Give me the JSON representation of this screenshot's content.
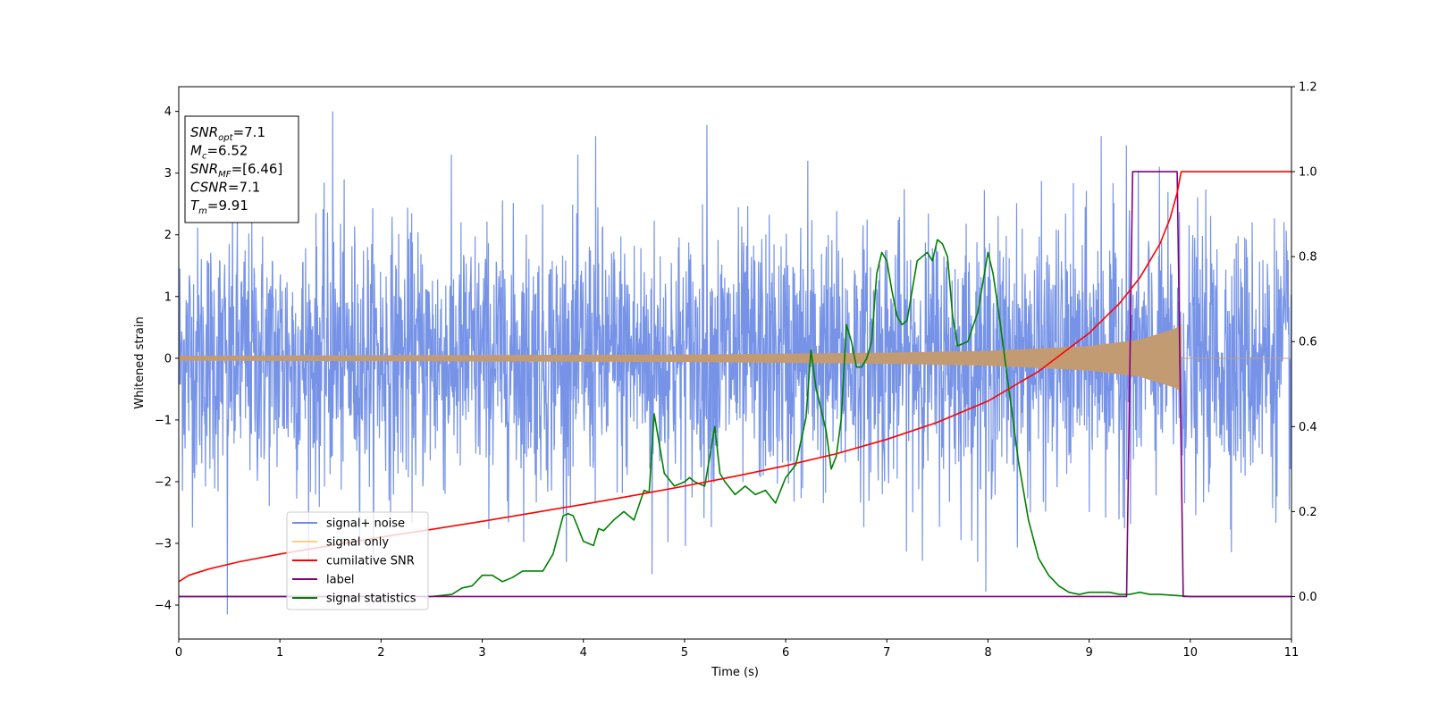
{
  "chart_data": {
    "type": "line",
    "xlabel": "Time (s)",
    "ylabel": "Whitened strain",
    "xlim": [
      0,
      11
    ],
    "ylim_left": [
      -4.55,
      4.4
    ],
    "ylim_right": [
      -0.1,
      1.2
    ],
    "x_ticks": [
      0,
      1,
      2,
      3,
      4,
      5,
      6,
      7,
      8,
      9,
      10,
      11
    ],
    "y_ticks_left": [
      -4,
      -3,
      -2,
      -1,
      0,
      1,
      2,
      3,
      4
    ],
    "y_ticks_right": [
      "0.0",
      "0.2",
      "0.4",
      "0.6",
      "0.8",
      "1.0",
      "1.2"
    ],
    "y_tick_values_right": [
      0.0,
      0.2,
      0.4,
      0.6,
      0.8,
      1.0,
      1.2
    ],
    "grid": false,
    "legend_position": "lower-left",
    "annotation": {
      "lines": [
        {
          "base": "SNR",
          "sub": "opt",
          "value": "=7.1"
        },
        {
          "base": "M",
          "sub": "c",
          "value": "=6.52"
        },
        {
          "base": "SNR",
          "sub": "MF",
          "value": "=[6.46]"
        },
        {
          "base": "CSNR",
          "sub": "",
          "value": "=7.1"
        },
        {
          "base": "T",
          "sub": "m",
          "value": "=9.91"
        }
      ]
    },
    "series": [
      {
        "name": "signal+ noise",
        "axis": "left",
        "color": "#6f8de6",
        "kind": "noise",
        "x_range": [
          0,
          11
        ],
        "typical_amplitude": 1.1,
        "peak_samples": [
          {
            "x": 0.48,
            "y": -4.15
          },
          {
            "x": 1.52,
            "y": 4.0
          },
          {
            "x": 4.12,
            "y": 3.6
          },
          {
            "x": 5.22,
            "y": 3.78
          },
          {
            "x": 6.22,
            "y": 3.2
          },
          {
            "x": 7.98,
            "y": -3.78
          },
          {
            "x": 9.12,
            "y": 3.6
          },
          {
            "x": 9.37,
            "y": 3.45
          },
          {
            "x": 4.68,
            "y": -3.5
          }
        ]
      },
      {
        "name": "signal only",
        "axis": "left",
        "color": "#c39b73",
        "kind": "chirp",
        "x_range": [
          0,
          9.91
        ],
        "envelope": [
          {
            "x": 0.0,
            "y": 0.04
          },
          {
            "x": 5.0,
            "y": 0.06
          },
          {
            "x": 7.0,
            "y": 0.09
          },
          {
            "x": 8.0,
            "y": 0.12
          },
          {
            "x": 9.0,
            "y": 0.2
          },
          {
            "x": 9.5,
            "y": 0.3
          },
          {
            "x": 9.85,
            "y": 0.48
          },
          {
            "x": 9.91,
            "y": 0.55
          }
        ]
      },
      {
        "name": "cumilative SNR",
        "axis": "right",
        "color": "#ff0000",
        "x": [
          0.0,
          0.1,
          0.3,
          0.6,
          1.0,
          1.5,
          2.0,
          2.5,
          3.0,
          3.5,
          4.0,
          4.5,
          5.0,
          5.5,
          6.0,
          6.5,
          7.0,
          7.5,
          8.0,
          8.5,
          9.0,
          9.3,
          9.5,
          9.7,
          9.8,
          9.87,
          9.91,
          10.0,
          11.0
        ],
        "y": [
          0.035,
          0.05,
          0.065,
          0.082,
          0.1,
          0.12,
          0.14,
          0.158,
          0.177,
          0.197,
          0.217,
          0.238,
          0.26,
          0.283,
          0.308,
          0.336,
          0.37,
          0.41,
          0.46,
          0.53,
          0.62,
          0.69,
          0.75,
          0.83,
          0.89,
          0.95,
          1.0,
          1.0,
          1.0
        ]
      },
      {
        "name": "label",
        "axis": "right",
        "color": "#800080",
        "x": [
          0.0,
          9.37,
          9.43,
          9.87,
          9.93,
          11.0
        ],
        "y": [
          0.0,
          0.0,
          1.0,
          1.0,
          0.0,
          0.0
        ]
      },
      {
        "name": "signal statistics",
        "axis": "right",
        "color": "#008000",
        "x": [
          0.0,
          2.0,
          2.5,
          2.7,
          2.8,
          2.9,
          3.0,
          3.1,
          3.2,
          3.3,
          3.4,
          3.5,
          3.6,
          3.7,
          3.8,
          3.85,
          3.9,
          4.0,
          4.1,
          4.15,
          4.2,
          4.3,
          4.4,
          4.5,
          4.6,
          4.65,
          4.7,
          4.8,
          4.9,
          5.0,
          5.05,
          5.1,
          5.2,
          5.25,
          5.3,
          5.35,
          5.4,
          5.5,
          5.6,
          5.7,
          5.8,
          5.9,
          6.0,
          6.1,
          6.2,
          6.25,
          6.3,
          6.4,
          6.45,
          6.5,
          6.55,
          6.6,
          6.65,
          6.7,
          6.75,
          6.8,
          6.85,
          6.9,
          6.95,
          7.0,
          7.05,
          7.1,
          7.15,
          7.2,
          7.3,
          7.4,
          7.45,
          7.5,
          7.55,
          7.6,
          7.65,
          7.7,
          7.8,
          7.9,
          8.0,
          8.05,
          8.1,
          8.2,
          8.3,
          8.4,
          8.5,
          8.6,
          8.7,
          8.8,
          8.9,
          9.0,
          9.1,
          9.2,
          9.3,
          9.4,
          9.5,
          9.6,
          9.7,
          10.0,
          11.0
        ],
        "y": [
          0.0,
          0.0,
          0.0,
          0.005,
          0.02,
          0.025,
          0.05,
          0.05,
          0.035,
          0.045,
          0.06,
          0.06,
          0.06,
          0.1,
          0.19,
          0.195,
          0.19,
          0.13,
          0.12,
          0.16,
          0.155,
          0.18,
          0.2,
          0.18,
          0.25,
          0.245,
          0.43,
          0.29,
          0.26,
          0.27,
          0.28,
          0.27,
          0.26,
          0.33,
          0.4,
          0.29,
          0.27,
          0.24,
          0.26,
          0.24,
          0.25,
          0.22,
          0.28,
          0.31,
          0.42,
          0.58,
          0.49,
          0.39,
          0.3,
          0.33,
          0.42,
          0.64,
          0.6,
          0.54,
          0.54,
          0.56,
          0.6,
          0.76,
          0.81,
          0.79,
          0.72,
          0.66,
          0.64,
          0.65,
          0.79,
          0.81,
          0.79,
          0.84,
          0.83,
          0.8,
          0.66,
          0.59,
          0.6,
          0.67,
          0.81,
          0.76,
          0.68,
          0.5,
          0.32,
          0.18,
          0.09,
          0.05,
          0.025,
          0.01,
          0.005,
          0.01,
          0.01,
          0.01,
          0.005,
          0.005,
          0.01,
          0.005,
          0.005,
          0.0,
          0.0
        ]
      }
    ]
  }
}
